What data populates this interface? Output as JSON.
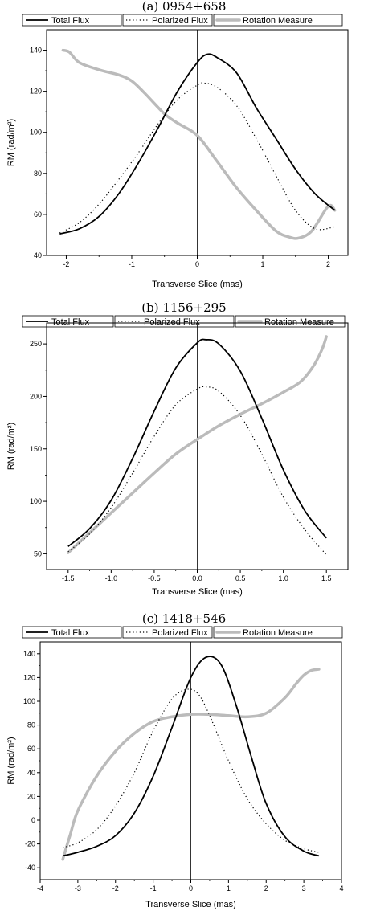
{
  "chart_data": [
    {
      "type": "line",
      "title": "(a) 0954+658",
      "xlabel": "Transverse Slice (mas)",
      "ylabel": "RM (rad/m²)",
      "xlim": [
        -2.3,
        2.3
      ],
      "ylim": [
        40,
        150
      ],
      "xticks": [
        -2,
        -1,
        0,
        1,
        2
      ],
      "xtick_labels": [
        "-2",
        "-1",
        "0",
        "1",
        "2"
      ],
      "yticks": [
        40,
        60,
        80,
        100,
        120,
        140
      ],
      "ytick_labels": [
        "40",
        "60",
        "80",
        "100",
        "120",
        "140"
      ],
      "vline_x": 0,
      "legend_position": "top",
      "series": [
        {
          "name": "Total Flux",
          "style": "solid",
          "color": "#000000",
          "x": [
            -2.1,
            -1.8,
            -1.5,
            -1.2,
            -0.9,
            -0.6,
            -0.3,
            0,
            0.15,
            0.3,
            0.6,
            0.9,
            1.2,
            1.5,
            1.8,
            2.1
          ],
          "y": [
            50.5,
            53,
            59,
            70,
            85,
            102,
            120,
            134,
            138,
            136.5,
            129,
            112,
            97,
            82,
            70,
            62
          ]
        },
        {
          "name": "Polarized Flux",
          "style": "dotted",
          "color": "#000000",
          "x": [
            -2.1,
            -1.8,
            -1.5,
            -1.2,
            -0.9,
            -0.6,
            -0.3,
            0,
            0.1,
            0.3,
            0.6,
            0.9,
            1.2,
            1.5,
            1.8,
            2.1
          ],
          "y": [
            51,
            56,
            65,
            77,
            90,
            104,
            116,
            123,
            124,
            122,
            113,
            97,
            79,
            62,
            53,
            54
          ]
        },
        {
          "name": "Rotation Measure",
          "style": "solid",
          "color": "#bbbbbb",
          "x": [
            -2.05,
            -1.95,
            -1.8,
            -1.5,
            -1.2,
            -1.0,
            -0.8,
            -0.5,
            -0.3,
            0,
            0.3,
            0.6,
            0.9,
            1.2,
            1.4,
            1.55,
            1.75,
            2.0,
            2.1
          ],
          "y": [
            140,
            139,
            134,
            130.5,
            128,
            125,
            119,
            109,
            104.5,
            98.5,
            86,
            73,
            62,
            52,
            49,
            48.5,
            52,
            64,
            62
          ]
        }
      ]
    },
    {
      "type": "line",
      "title": "(b) 1156+295",
      "xlabel": "Transverse Slice (mas)",
      "ylabel": "RM (rad/m²)",
      "xlim": [
        -1.75,
        1.75
      ],
      "ylim": [
        35,
        270
      ],
      "xticks": [
        -1.5,
        -1.0,
        -0.5,
        0,
        0.5,
        1.0,
        1.5
      ],
      "xtick_labels": [
        "-1.5",
        "-1.0",
        "-0.5",
        "0.0",
        "0.5",
        "1.0",
        "1.5"
      ],
      "yticks": [
        50,
        100,
        150,
        200,
        250
      ],
      "ytick_labels": [
        "50",
        "100",
        "150",
        "200",
        "250"
      ],
      "vline_x": 0,
      "legend_position": "top",
      "series": [
        {
          "name": "Total Flux",
          "style": "solid",
          "color": "#000000",
          "x": [
            -1.5,
            -1.25,
            -1.0,
            -0.75,
            -0.5,
            -0.25,
            0,
            0.1,
            0.25,
            0.5,
            0.75,
            1.0,
            1.25,
            1.5
          ],
          "y": [
            57,
            74,
            101,
            141,
            186,
            227,
            251,
            254,
            250,
            224,
            179,
            130,
            91,
            65
          ]
        },
        {
          "name": "Polarized Flux",
          "style": "dotted",
          "color": "#000000",
          "x": [
            -1.5,
            -1.25,
            -1.0,
            -0.75,
            -0.5,
            -0.25,
            0,
            0.1,
            0.25,
            0.5,
            0.75,
            1.0,
            1.25,
            1.5
          ],
          "y": [
            52,
            69,
            94,
            127,
            162,
            192,
            207,
            209,
            205,
            182,
            145,
            104,
            73,
            49
          ]
        },
        {
          "name": "Rotation Measure",
          "style": "solid",
          "color": "#bbbbbb",
          "x": [
            -1.5,
            -1.25,
            -1.0,
            -0.75,
            -0.5,
            -0.25,
            0,
            0.25,
            0.5,
            0.75,
            1.0,
            1.2,
            1.35,
            1.45,
            1.5
          ],
          "y": [
            51,
            70,
            89,
            108,
            127,
            145,
            159,
            172,
            183,
            193,
            204,
            214,
            229,
            245,
            257
          ]
        }
      ]
    },
    {
      "type": "line",
      "title": "(c) 1418+546",
      "xlabel": "Transverse Slice (mas)",
      "ylabel": "RM (rad/m²)",
      "xlim": [
        -4,
        4
      ],
      "ylim": [
        -50,
        150
      ],
      "xticks": [
        -4,
        -3,
        -2,
        -1,
        0,
        1,
        2,
        3,
        4
      ],
      "xtick_labels": [
        "-4",
        "-3",
        "-2",
        "-1",
        "0",
        "1",
        "2",
        "3",
        "4"
      ],
      "yticks": [
        -40,
        -20,
        0,
        20,
        40,
        60,
        80,
        100,
        120,
        140
      ],
      "ytick_labels": [
        "-40",
        "-20",
        "0",
        "20",
        "40",
        "60",
        "80",
        "100",
        "120",
        "140"
      ],
      "vline_x": 0,
      "legend_position": "top",
      "series": [
        {
          "name": "Total Flux",
          "style": "solid",
          "color": "#000000",
          "x": [
            -3.4,
            -3.0,
            -2.5,
            -2.0,
            -1.5,
            -1.0,
            -0.5,
            0,
            0.4,
            0.8,
            1.2,
            1.6,
            2.0,
            2.5,
            3.0,
            3.4
          ],
          "y": [
            -30,
            -27,
            -22,
            -13,
            6,
            37,
            78,
            120,
            137,
            131,
            97,
            54,
            14,
            -14,
            -26,
            -30
          ]
        },
        {
          "name": "Polarized Flux",
          "style": "dotted",
          "color": "#000000",
          "x": [
            -3.4,
            -3.0,
            -2.5,
            -2.0,
            -1.5,
            -1.0,
            -0.5,
            -0.1,
            0.2,
            0.5,
            1.0,
            1.5,
            2.0,
            2.5,
            3.0,
            3.4
          ],
          "y": [
            -23,
            -19,
            -8,
            12,
            40,
            75,
            102,
            110,
            106,
            88,
            50,
            18,
            -3,
            -17,
            -24,
            -27
          ]
        },
        {
          "name": "Rotation Measure",
          "style": "solid",
          "color": "#bbbbbb",
          "x": [
            -3.4,
            -3.2,
            -3.0,
            -2.5,
            -2.0,
            -1.5,
            -1.0,
            -0.5,
            0,
            0.5,
            1.0,
            1.5,
            2.0,
            2.5,
            2.8,
            3.0,
            3.2,
            3.4
          ],
          "y": [
            -33,
            -12,
            8,
            37,
            58,
            73,
            83,
            87,
            89,
            89,
            88,
            87,
            90,
            103,
            115,
            122,
            126,
            127
          ]
        }
      ]
    }
  ]
}
